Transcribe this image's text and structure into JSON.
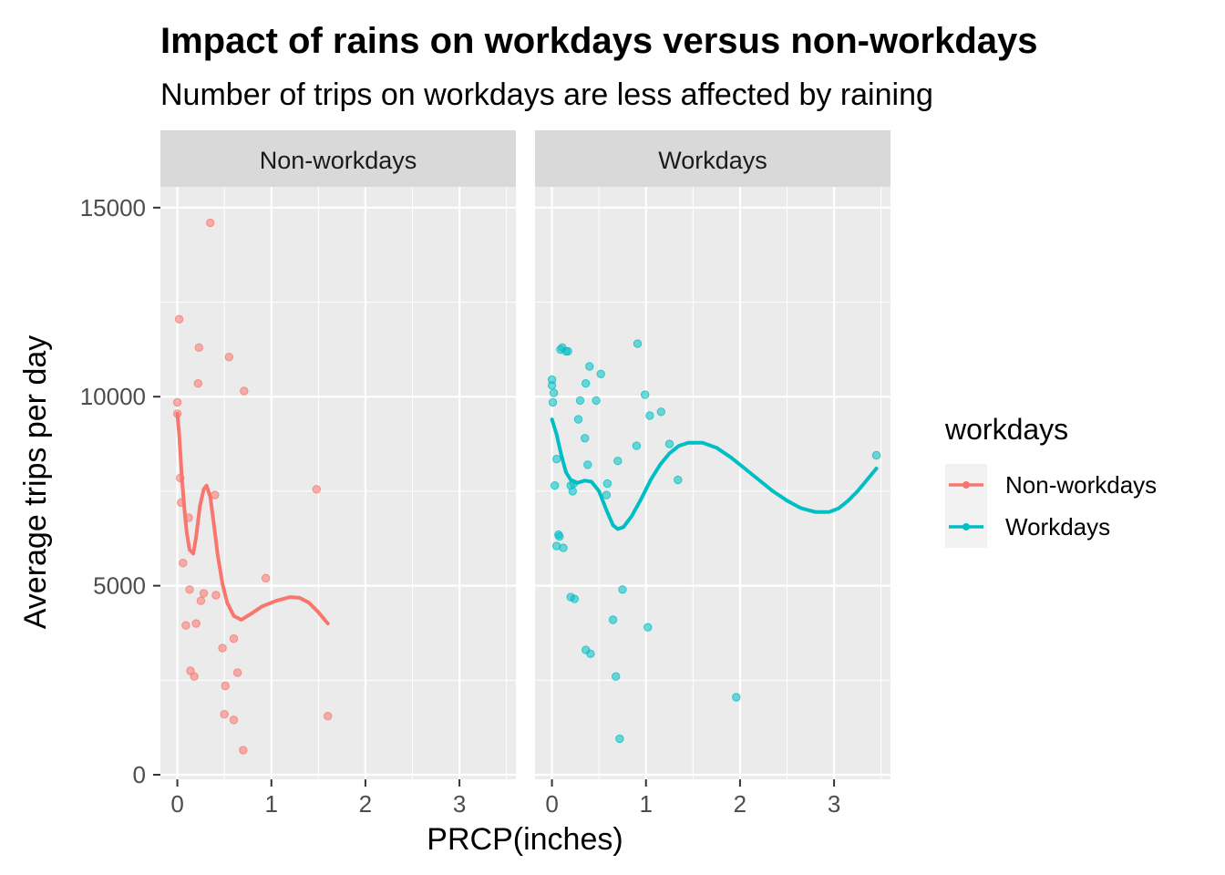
{
  "chart_data": {
    "type": "scatter",
    "title": "Impact of rains on workdays versus non-workdays",
    "subtitle": "Number of trips on workdays are less affected by raining",
    "xlabel": "PRCP(inches)",
    "ylabel": "Average trips per day",
    "xlim": [
      -0.18,
      3.6
    ],
    "ylim": [
      -120,
      15550
    ],
    "x_ticks": [
      0,
      1,
      2,
      3
    ],
    "y_ticks": [
      0,
      5000,
      10000,
      15000
    ],
    "y_tick_labels": [
      "0",
      "5000",
      "10000",
      "15000"
    ],
    "grid": true,
    "legend_position": "right",
    "legend": {
      "title": "workdays",
      "entries": [
        "Non-workdays",
        "Workdays"
      ]
    },
    "panels": [
      {
        "strip": "Non-workdays",
        "color": "#F8766D",
        "points": [
          [
            0.0,
            9850
          ],
          [
            0.0,
            9550
          ],
          [
            0.02,
            12050
          ],
          [
            0.03,
            7850
          ],
          [
            0.04,
            7200
          ],
          [
            0.06,
            5600
          ],
          [
            0.09,
            3950
          ],
          [
            0.12,
            6800
          ],
          [
            0.13,
            4900
          ],
          [
            0.14,
            2750
          ],
          [
            0.18,
            2600
          ],
          [
            0.2,
            4000
          ],
          [
            0.22,
            10350
          ],
          [
            0.23,
            11300
          ],
          [
            0.25,
            4600
          ],
          [
            0.28,
            4800
          ],
          [
            0.35,
            14600
          ],
          [
            0.4,
            7400
          ],
          [
            0.41,
            4750
          ],
          [
            0.48,
            3350
          ],
          [
            0.5,
            1600
          ],
          [
            0.51,
            2350
          ],
          [
            0.55,
            11050
          ],
          [
            0.6,
            1450
          ],
          [
            0.6,
            3600
          ],
          [
            0.64,
            2700
          ],
          [
            0.7,
            650
          ],
          [
            0.71,
            10150
          ],
          [
            0.94,
            5200
          ],
          [
            1.48,
            7550
          ],
          [
            1.6,
            1550
          ]
        ],
        "smooth": [
          [
            0.0,
            9550
          ],
          [
            0.02,
            9000
          ],
          [
            0.05,
            7800
          ],
          [
            0.08,
            6900
          ],
          [
            0.1,
            6400
          ],
          [
            0.13,
            5950
          ],
          [
            0.17,
            5850
          ],
          [
            0.2,
            6300
          ],
          [
            0.24,
            7100
          ],
          [
            0.28,
            7550
          ],
          [
            0.31,
            7650
          ],
          [
            0.35,
            7350
          ],
          [
            0.39,
            6600
          ],
          [
            0.43,
            5800
          ],
          [
            0.48,
            5050
          ],
          [
            0.53,
            4550
          ],
          [
            0.6,
            4200
          ],
          [
            0.68,
            4100
          ],
          [
            0.78,
            4250
          ],
          [
            0.9,
            4450
          ],
          [
            1.05,
            4600
          ],
          [
            1.2,
            4700
          ],
          [
            1.3,
            4680
          ],
          [
            1.4,
            4550
          ],
          [
            1.5,
            4300
          ],
          [
            1.6,
            4000
          ]
        ]
      },
      {
        "strip": "Workdays",
        "color": "#00BFC4",
        "points": [
          [
            0.0,
            10450
          ],
          [
            0.0,
            10300
          ],
          [
            0.01,
            9850
          ],
          [
            0.02,
            10100
          ],
          [
            0.03,
            7650
          ],
          [
            0.05,
            8350
          ],
          [
            0.05,
            6050
          ],
          [
            0.07,
            6350
          ],
          [
            0.08,
            6300
          ],
          [
            0.09,
            11250
          ],
          [
            0.11,
            11300
          ],
          [
            0.12,
            6000
          ],
          [
            0.15,
            11200
          ],
          [
            0.17,
            11200
          ],
          [
            0.2,
            7650
          ],
          [
            0.2,
            4700
          ],
          [
            0.22,
            7500
          ],
          [
            0.23,
            7700
          ],
          [
            0.24,
            4650
          ],
          [
            0.28,
            9400
          ],
          [
            0.3,
            9900
          ],
          [
            0.35,
            8900
          ],
          [
            0.36,
            10350
          ],
          [
            0.36,
            3300
          ],
          [
            0.38,
            8200
          ],
          [
            0.4,
            10800
          ],
          [
            0.41,
            3200
          ],
          [
            0.47,
            9900
          ],
          [
            0.52,
            10600
          ],
          [
            0.58,
            7400
          ],
          [
            0.59,
            7700
          ],
          [
            0.65,
            4100
          ],
          [
            0.68,
            2600
          ],
          [
            0.7,
            8300
          ],
          [
            0.72,
            950
          ],
          [
            0.75,
            4900
          ],
          [
            0.9,
            8700
          ],
          [
            0.91,
            11400
          ],
          [
            0.99,
            10050
          ],
          [
            1.02,
            3900
          ],
          [
            1.04,
            9500
          ],
          [
            1.16,
            9600
          ],
          [
            1.25,
            8750
          ],
          [
            1.34,
            7800
          ],
          [
            1.96,
            2050
          ],
          [
            3.45,
            8450
          ]
        ],
        "smooth": [
          [
            0.0,
            9400
          ],
          [
            0.05,
            9000
          ],
          [
            0.1,
            8450
          ],
          [
            0.15,
            8000
          ],
          [
            0.2,
            7800
          ],
          [
            0.27,
            7720
          ],
          [
            0.35,
            7780
          ],
          [
            0.42,
            7750
          ],
          [
            0.5,
            7500
          ],
          [
            0.58,
            7000
          ],
          [
            0.65,
            6600
          ],
          [
            0.7,
            6500
          ],
          [
            0.76,
            6550
          ],
          [
            0.85,
            6850
          ],
          [
            0.95,
            7300
          ],
          [
            1.05,
            7800
          ],
          [
            1.15,
            8200
          ],
          [
            1.25,
            8500
          ],
          [
            1.35,
            8700
          ],
          [
            1.45,
            8780
          ],
          [
            1.6,
            8780
          ],
          [
            1.75,
            8650
          ],
          [
            1.9,
            8400
          ],
          [
            2.05,
            8100
          ],
          [
            2.2,
            7800
          ],
          [
            2.35,
            7500
          ],
          [
            2.5,
            7250
          ],
          [
            2.65,
            7050
          ],
          [
            2.8,
            6950
          ],
          [
            2.95,
            6950
          ],
          [
            3.05,
            7050
          ],
          [
            3.15,
            7250
          ],
          [
            3.25,
            7500
          ],
          [
            3.35,
            7800
          ],
          [
            3.45,
            8100
          ]
        ]
      }
    ]
  }
}
